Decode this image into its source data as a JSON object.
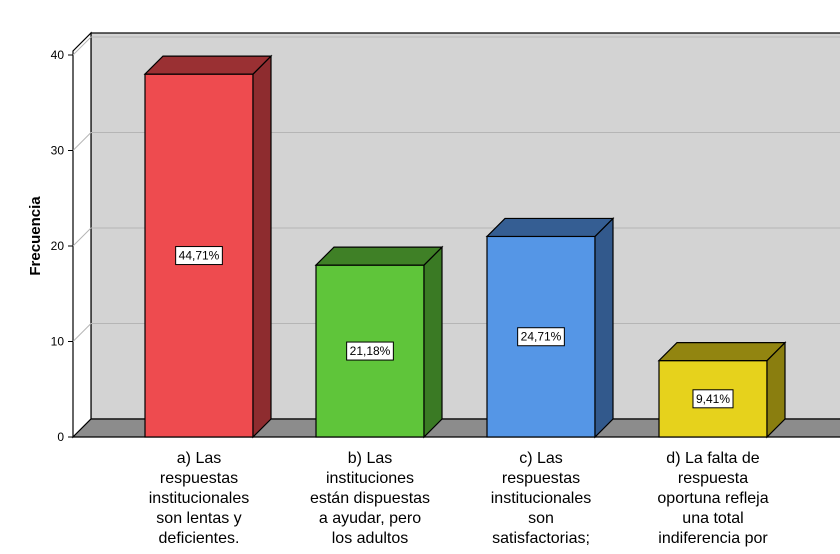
{
  "chart_data": {
    "type": "bar",
    "ylabel": "Frecuencia",
    "ylim": [
      0,
      40
    ],
    "yticks": [
      0,
      10,
      20,
      30,
      40
    ],
    "grid": true,
    "categories": [
      [
        "a) Las",
        "respuestas",
        "institucionales",
        "son lentas y",
        "deficientes."
      ],
      [
        "b) Las",
        "instituciones",
        "están dispuestas",
        "a ayudar, pero",
        "los adultos"
      ],
      [
        "c) Las",
        "respuestas",
        "institucionales",
        "son",
        "satisfactorias;"
      ],
      [
        "d) La falta de",
        "respuesta",
        "oportuna refleja",
        "una total",
        "indiferencia por"
      ]
    ],
    "values": [
      38,
      18,
      21,
      8
    ],
    "percent_labels": [
      "44,71%",
      "21,18%",
      "24,71%",
      "9,41%"
    ],
    "colors": [
      {
        "front": "#ee4b4f",
        "side": "#8e2c2f",
        "top": "#9a3033"
      },
      {
        "front": "#5fc53a",
        "side": "#3a7a24",
        "top": "#3f8026"
      },
      {
        "front": "#5596e6",
        "side": "#32598c",
        "top": "#355e93"
      },
      {
        "front": "#e6d21c",
        "side": "#8a7e0f",
        "top": "#928510"
      }
    ],
    "wall_color": "#d3d3d3",
    "floor_color": "#8c8c8c"
  }
}
